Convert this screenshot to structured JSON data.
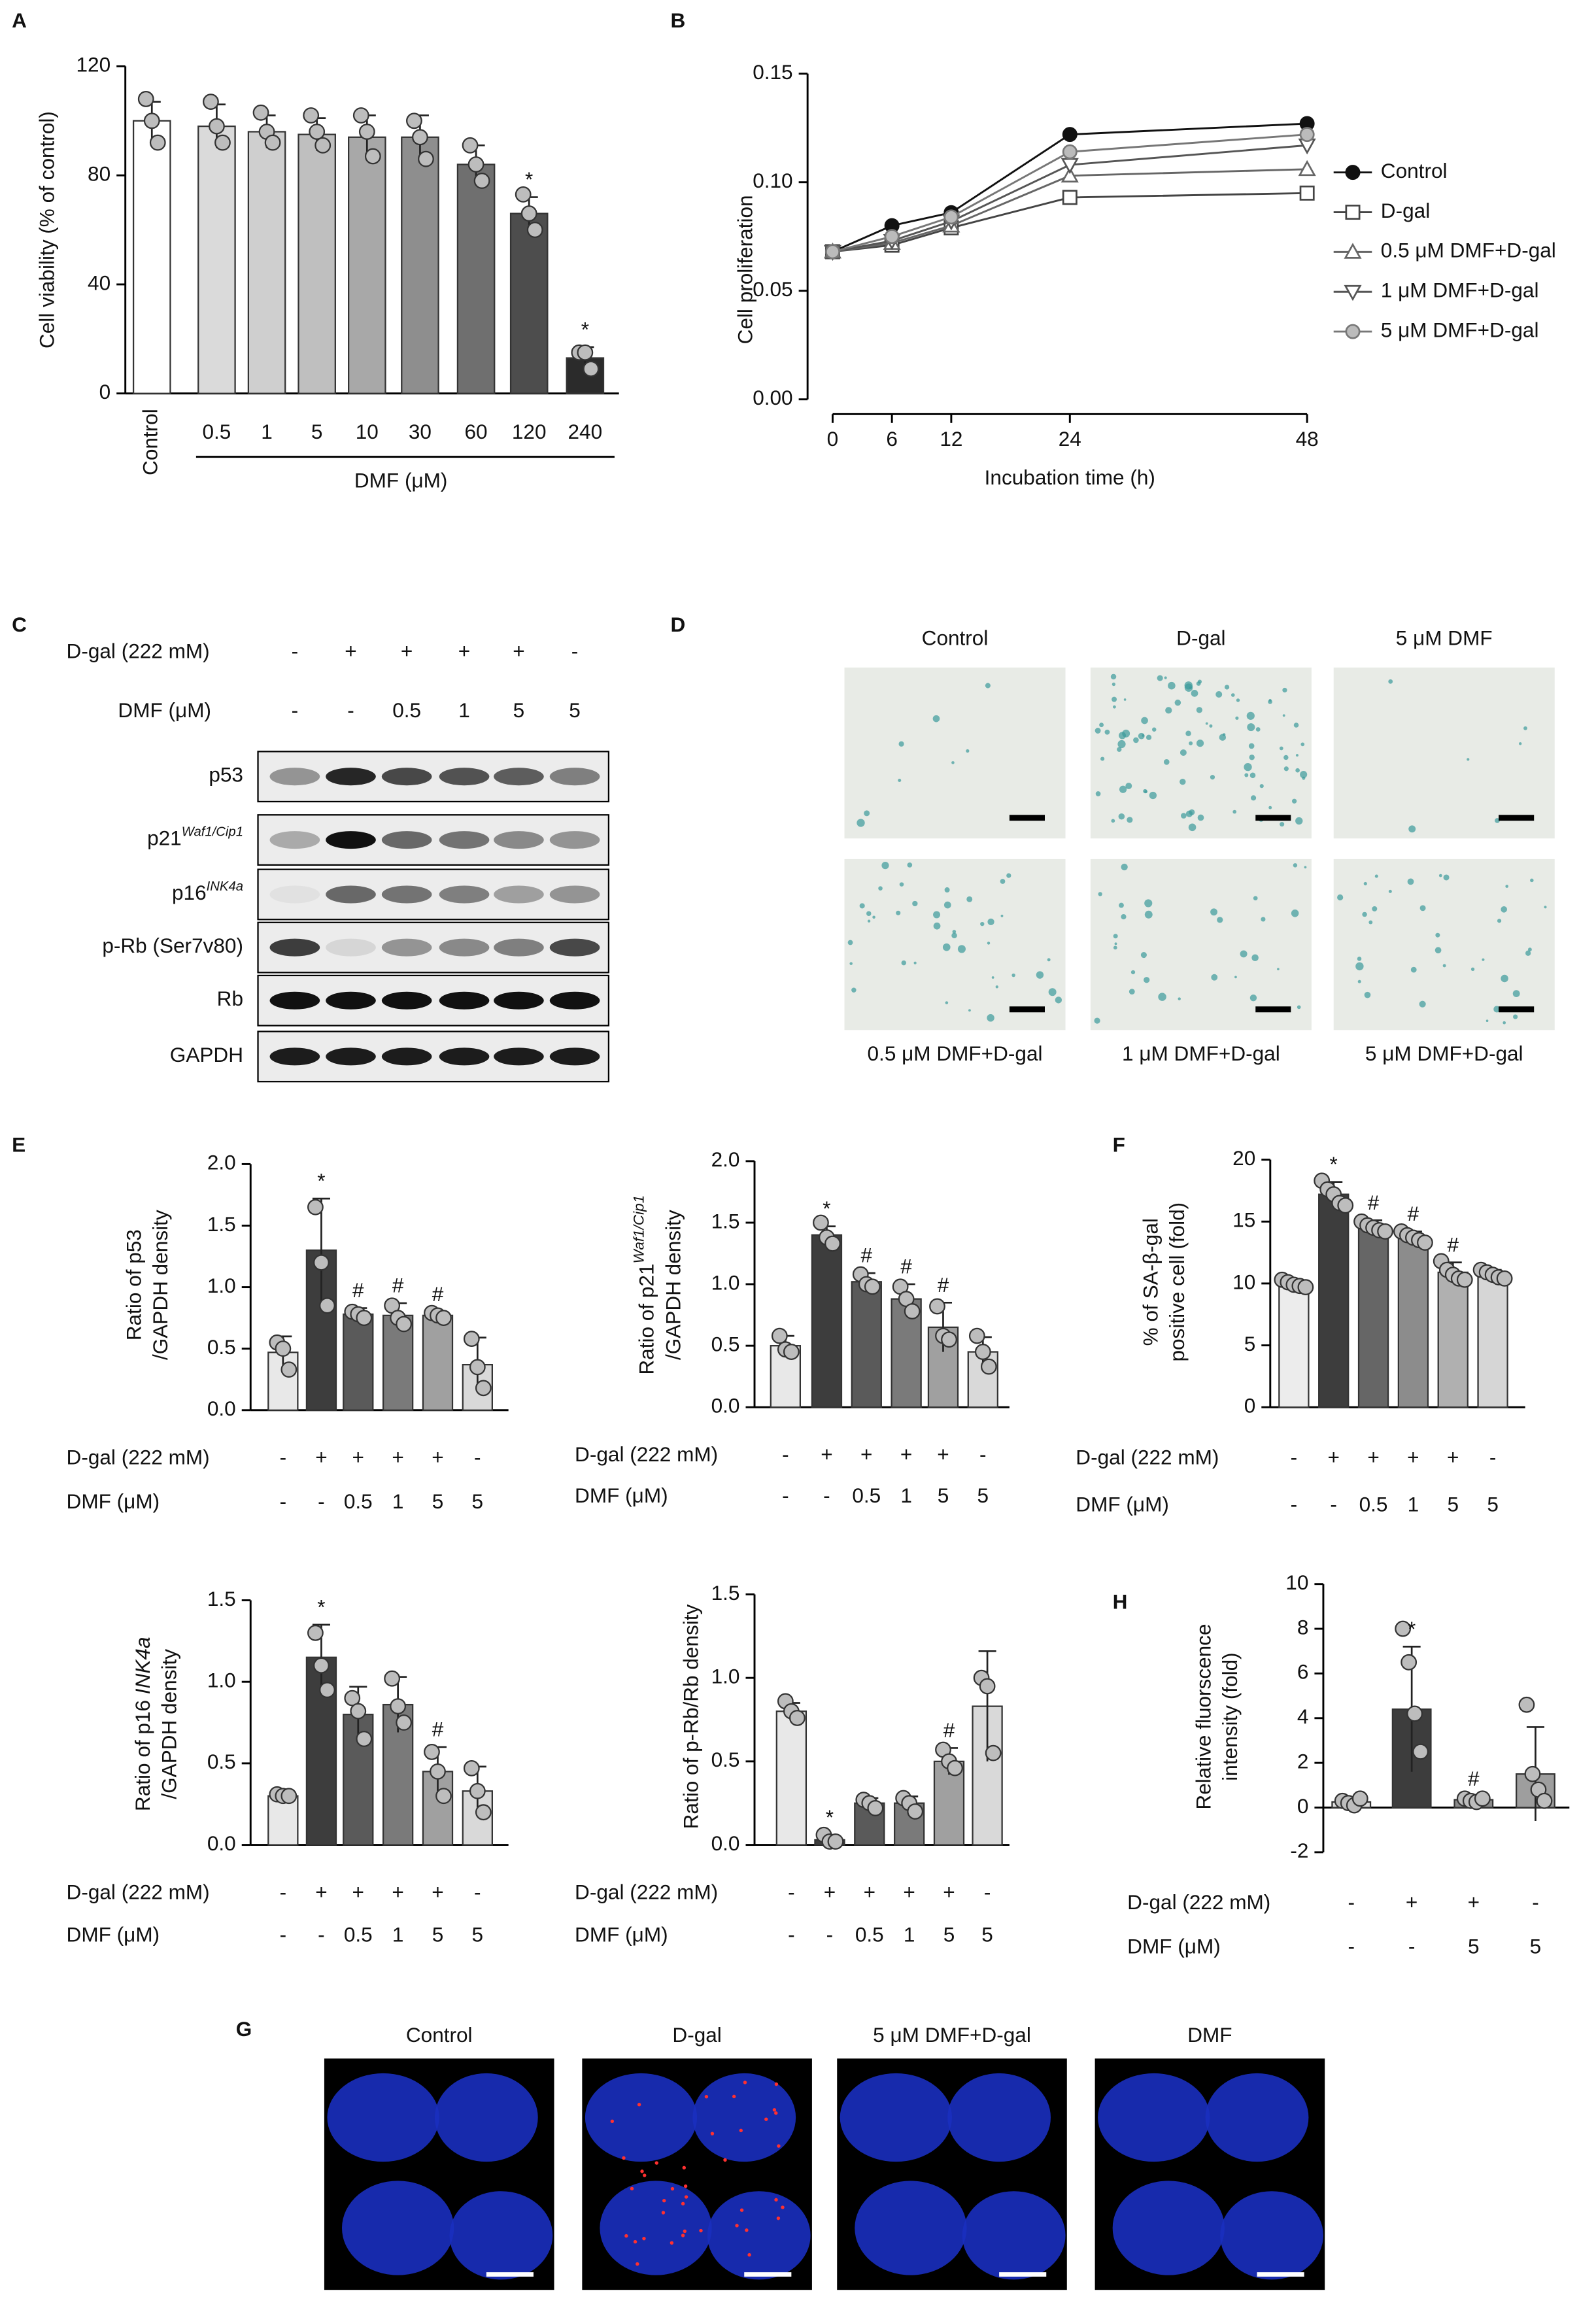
{
  "panel_labels": [
    "A",
    "B",
    "C",
    "D",
    "E",
    "F",
    "G",
    "H"
  ],
  "chart_data": [
    {
      "type": "bar",
      "ylabel": [
        [
          {
            "text": "Cell viability (% of control)"
          }
        ]
      ],
      "categories": [
        "Control",
        "0.5",
        "1",
        "5",
        "10",
        "30",
        "60",
        "120",
        "240"
      ],
      "group_label": "DMF (μM)",
      "values": [
        100,
        98,
        96,
        95,
        94,
        94,
        84,
        66,
        13
      ],
      "errors": [
        7,
        8,
        6,
        6,
        8,
        8,
        7,
        6,
        4
      ],
      "points": [
        [
          108,
          100,
          92
        ],
        [
          107,
          98,
          92
        ],
        [
          103,
          96,
          92
        ],
        [
          102,
          96,
          91
        ],
        [
          102,
          96,
          87
        ],
        [
          100,
          94,
          86
        ],
        [
          91,
          84,
          78
        ],
        [
          73,
          66,
          60
        ],
        [
          15,
          15,
          9
        ]
      ],
      "annotations": [
        null,
        null,
        null,
        null,
        null,
        null,
        null,
        "*",
        "*"
      ],
      "colors": [
        "#ffffff",
        "#dadada",
        "#cfcfcf",
        "#bfbfbf",
        "#a8a8a8",
        "#8e8e8e",
        "#6f6f6f",
        "#4d4d4d",
        "#2b2b2b"
      ],
      "ylim": [
        0,
        120
      ],
      "yticks": [
        0,
        40,
        80,
        120
      ]
    },
    {
      "type": "line",
      "ylabel": [
        [
          {
            "text": "Cell proliferation"
          }
        ]
      ],
      "xlabel": "Incubation time (h)",
      "x": [
        0,
        6,
        12,
        24,
        48
      ],
      "xlim": [
        0,
        48
      ],
      "xticks": [
        0,
        6,
        12,
        24,
        48
      ],
      "ylim": [
        0,
        0.15
      ],
      "yticks": [
        {
          "value": 0,
          "label": "0.00"
        },
        0.05,
        {
          "value": 0.1,
          "label": "0.10"
        },
        0.15
      ],
      "series": [
        {
          "name": "Control",
          "color": "#111111",
          "marker": "circle-filled",
          "values": [
            0.068,
            0.08,
            0.086,
            0.122,
            0.127
          ]
        },
        {
          "name": "D-gal",
          "color": "#444444",
          "marker": "square",
          "values": [
            0.068,
            0.071,
            0.079,
            0.093,
            0.095
          ]
        },
        {
          "name": "0.5 μM DMF+D-gal",
          "color": "#666666",
          "marker": "triangle-up",
          "values": [
            0.068,
            0.072,
            0.08,
            0.103,
            0.106
          ]
        },
        {
          "name": "1 μM DMF+D-gal",
          "color": "#555555",
          "marker": "triangle-down",
          "values": [
            0.068,
            0.073,
            0.082,
            0.108,
            0.117
          ]
        },
        {
          "name": "5 μM DMF+D-gal",
          "color": "#777777",
          "marker": "circle",
          "values": [
            0.068,
            0.075,
            0.084,
            0.114,
            0.122
          ]
        }
      ]
    },
    {
      "type": "bar",
      "ylabel": [
        [
          {
            "text": "Ratio of p53"
          }
        ],
        [
          {
            "text": "/GAPDH density"
          }
        ]
      ],
      "conditions": [
        {
          "label": "D-gal (222 mM)",
          "values": [
            "-",
            "+",
            "+",
            "+",
            "+",
            "-"
          ]
        },
        {
          "label": "DMF (μM)",
          "values": [
            "-",
            "-",
            "0.5",
            "1",
            "5",
            "5"
          ]
        }
      ],
      "values": [
        0.47,
        1.3,
        0.78,
        0.77,
        0.77,
        0.37
      ],
      "errors": [
        0.13,
        0.42,
        0.05,
        0.1,
        0.03,
        0.22
      ],
      "points": [
        [
          0.55,
          0.5,
          0.33
        ],
        [
          1.65,
          1.2,
          0.85
        ],
        [
          0.8,
          0.78,
          0.75
        ],
        [
          0.85,
          0.75,
          0.7
        ],
        [
          0.79,
          0.77,
          0.75
        ],
        [
          0.58,
          0.35,
          0.18
        ]
      ],
      "annotations": [
        null,
        "*",
        "#",
        "#",
        "#",
        null
      ],
      "colors": [
        "#e8e8e8",
        "#3d3d3d",
        "#5a5a5a",
        "#7a7a7a",
        "#a0a0a0",
        "#d9d9d9"
      ],
      "ylim": [
        0,
        2
      ],
      "yticks": [
        {
          "value": 0,
          "label": "0.0"
        },
        0.5,
        {
          "value": 1,
          "label": "1.0"
        },
        1.5,
        {
          "value": 2,
          "label": "2.0"
        }
      ]
    },
    {
      "type": "bar",
      "ylabel": [
        [
          {
            "text": "Ratio of p21"
          },
          {
            "text": "Waf1/Cip1",
            "sup": true
          }
        ],
        [
          {
            "text": "/GAPDH density"
          }
        ]
      ],
      "conditions": [
        {
          "label": "D-gal (222 mM)",
          "values": [
            "-",
            "+",
            "+",
            "+",
            "+",
            "-"
          ]
        },
        {
          "label": "DMF (μM)",
          "values": [
            "-",
            "-",
            "0.5",
            "1",
            "5",
            "5"
          ]
        }
      ],
      "values": [
        0.5,
        1.4,
        1.02,
        0.88,
        0.65,
        0.45
      ],
      "errors": [
        0.08,
        0.07,
        0.07,
        0.12,
        0.2,
        0.12
      ],
      "points": [
        [
          0.58,
          0.47,
          0.45
        ],
        [
          1.5,
          1.38,
          1.33
        ],
        [
          1.08,
          1.0,
          0.98
        ],
        [
          0.98,
          0.88,
          0.78
        ],
        [
          0.82,
          0.58,
          0.55
        ],
        [
          0.58,
          0.45,
          0.33
        ]
      ],
      "annotations": [
        null,
        "*",
        "#",
        "#",
        "#",
        null
      ],
      "colors": [
        "#e8e8e8",
        "#3d3d3d",
        "#5a5a5a",
        "#7a7a7a",
        "#a0a0a0",
        "#d9d9d9"
      ],
      "ylim": [
        0,
        2
      ],
      "yticks": [
        {
          "value": 0,
          "label": "0.0"
        },
        0.5,
        {
          "value": 1,
          "label": "1.0"
        },
        1.5,
        {
          "value": 2,
          "label": "2.0"
        }
      ]
    },
    {
      "type": "bar",
      "ylabel": [
        [
          {
            "text": "% of SA-β-gal"
          }
        ],
        [
          {
            "text": "positive cell (fold)"
          }
        ]
      ],
      "conditions": [
        {
          "label": "D-gal (222 mM)",
          "values": [
            "-",
            "+",
            "+",
            "+",
            "+",
            "-"
          ]
        },
        {
          "label": "DMF (μM)",
          "values": [
            "-",
            "-",
            "0.5",
            "1",
            "5",
            "5"
          ]
        }
      ],
      "values": [
        10,
        17.2,
        14.6,
        13.7,
        10.9,
        10.7
      ],
      "errors": [
        0.3,
        1.0,
        0.5,
        0.5,
        0.8,
        0.4
      ],
      "points": [
        [
          10.3,
          10.1,
          9.9,
          9.8,
          9.7
        ],
        [
          18.3,
          17.6,
          17.2,
          16.5,
          16.3
        ],
        [
          15.0,
          14.7,
          14.5,
          14.3,
          14.2
        ],
        [
          14.2,
          13.9,
          13.7,
          13.5,
          13.3
        ],
        [
          11.8,
          11.1,
          10.7,
          10.4,
          10.3
        ],
        [
          11.1,
          10.9,
          10.7,
          10.5,
          10.4
        ]
      ],
      "annotations": [
        null,
        "*",
        "#",
        "#",
        "#",
        null
      ],
      "colors": [
        "#ececec",
        "#3d3d3d",
        "#666666",
        "#8c8c8c",
        "#b0b0b0",
        "#d6d6d6"
      ],
      "ylim": [
        0,
        20
      ],
      "yticks": [
        0,
        5,
        10,
        15,
        20
      ]
    },
    {
      "type": "bar",
      "ylabel": [
        [
          {
            "text": "Ratio of p16 "
          },
          {
            "text": "INK4a",
            "italic": true
          }
        ],
        [
          {
            "text": "/GAPDH density"
          }
        ]
      ],
      "conditions": [
        {
          "label": "D-gal (222 mM)",
          "values": [
            "-",
            "+",
            "+",
            "+",
            "+",
            "-"
          ]
        },
        {
          "label": "DMF (μM)",
          "values": [
            "-",
            "-",
            "0.5",
            "1",
            "5",
            "5"
          ]
        }
      ],
      "values": [
        0.3,
        1.15,
        0.8,
        0.86,
        0.45,
        0.33
      ],
      "errors": [
        0.02,
        0.2,
        0.17,
        0.17,
        0.15,
        0.15
      ],
      "points": [
        [
          0.31,
          0.3,
          0.3
        ],
        [
          1.3,
          1.1,
          0.95
        ],
        [
          0.9,
          0.82,
          0.65
        ],
        [
          1.02,
          0.85,
          0.75
        ],
        [
          0.57,
          0.45,
          0.3
        ],
        [
          0.47,
          0.33,
          0.2
        ]
      ],
      "annotations": [
        null,
        "*",
        null,
        null,
        "#",
        null
      ],
      "colors": [
        "#e8e8e8",
        "#3d3d3d",
        "#5a5a5a",
        "#7a7a7a",
        "#a0a0a0",
        "#d9d9d9"
      ],
      "ylim": [
        0,
        1.5
      ],
      "yticks": [
        {
          "value": 0,
          "label": "0.0"
        },
        0.5,
        {
          "value": 1,
          "label": "1.0"
        },
        1.5
      ]
    },
    {
      "type": "bar",
      "ylabel": [
        [
          {
            "text": "Ratio of p-Rb/Rb density"
          }
        ]
      ],
      "conditions": [
        {
          "label": "D-gal (222 mM)",
          "values": [
            "-",
            "+",
            "+",
            "+",
            "+",
            "-"
          ]
        },
        {
          "label": "DMF (μM)",
          "values": [
            "-",
            "-",
            "0.5",
            "1",
            "5",
            "5"
          ]
        }
      ],
      "values": [
        0.8,
        0.03,
        0.25,
        0.25,
        0.5,
        0.83
      ],
      "errors": [
        0.05,
        0.03,
        0.03,
        0.04,
        0.08,
        0.33
      ],
      "points": [
        [
          0.86,
          0.8,
          0.76
        ],
        [
          0.06,
          0.02,
          0.02
        ],
        [
          0.27,
          0.25,
          0.22
        ],
        [
          0.28,
          0.25,
          0.2
        ],
        [
          0.57,
          0.5,
          0.46
        ],
        [
          1.0,
          0.95,
          0.55
        ]
      ],
      "annotations": [
        null,
        "*",
        null,
        null,
        "#",
        null
      ],
      "colors": [
        "#e8e8e8",
        "#3d3d3d",
        "#5a5a5a",
        "#7a7a7a",
        "#a0a0a0",
        "#d9d9d9"
      ],
      "ylim": [
        0,
        1.5
      ],
      "yticks": [
        {
          "value": 0,
          "label": "0.0"
        },
        0.5,
        {
          "value": 1,
          "label": "1.0"
        },
        1.5
      ]
    },
    {
      "type": "bar",
      "ylabel": [
        [
          {
            "text": "Relative fluorscence"
          }
        ],
        [
          {
            "text": "intensity (fold)"
          }
        ]
      ],
      "conditions": [
        {
          "label": "D-gal (222 mM)",
          "values": [
            "-",
            "+",
            "+",
            "-"
          ]
        },
        {
          "label": "DMF (μM)",
          "values": [
            "-",
            "-",
            "5",
            "5"
          ]
        }
      ],
      "values": [
        0.25,
        4.4,
        0.35,
        1.5
      ],
      "errors": [
        0.15,
        2.8,
        0.15,
        2.1
      ],
      "points": [
        [
          0.3,
          0.2,
          0.1,
          0.4
        ],
        [
          8.0,
          6.5,
          4.2,
          2.5
        ],
        [
          0.4,
          0.3,
          0.25,
          0.4
        ],
        [
          4.6,
          1.5,
          0.8,
          0.3
        ]
      ],
      "annotations": [
        null,
        "*",
        "#",
        null
      ],
      "colors": [
        "#e0e0e0",
        "#3d3d3d",
        "#8a8a8a",
        "#9e9e9e"
      ],
      "ylim": [
        -2,
        10
      ],
      "yticks": [
        -2,
        0,
        2,
        4,
        6,
        8,
        10
      ]
    }
  ],
  "blot": {
    "conditions": [
      {
        "label": "D-gal (222 mM)",
        "values": [
          "-",
          "+",
          "+",
          "+",
          "+",
          "-"
        ]
      },
      {
        "label": "DMF (μM)",
        "values": [
          "-",
          "-",
          "0.5",
          "1",
          "5",
          "5"
        ]
      }
    ],
    "rows": [
      {
        "label": "p53"
      },
      {
        "label": "p21",
        "sup": "Waf1/Cip1"
      },
      {
        "label": "p16",
        "sup": "INK4a"
      },
      {
        "label": "p-Rb (Ser7v80)"
      },
      {
        "label": "Rb"
      },
      {
        "label": "GAPDH"
      }
    ]
  },
  "staining": {
    "top": [
      "Control",
      "D-gal",
      "5 μM DMF"
    ],
    "bottom": [
      "0.5 μM DMF+D-gal",
      "1 μM DMF+D-gal",
      "5 μM DMF+D-gal"
    ]
  },
  "confocal": {
    "labels": [
      "Control",
      "D-gal",
      "5 μM DMF+D-gal",
      "DMF"
    ]
  }
}
